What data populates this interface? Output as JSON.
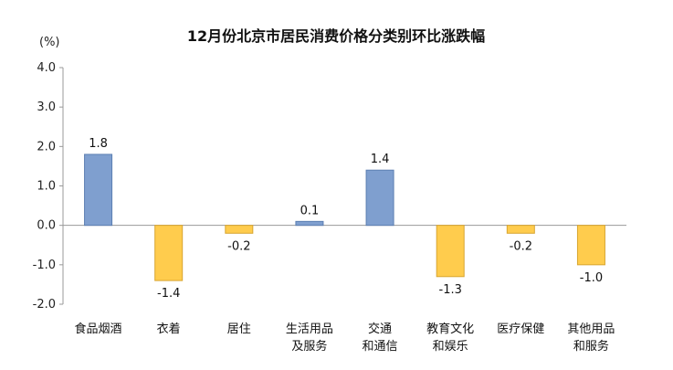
{
  "chart_data": {
    "type": "bar",
    "title": "12月份北京市居民消费价格分类别环比涨跌幅",
    "ylabel": "(%)",
    "ylim": [
      -2.0,
      4.0
    ],
    "yticks": [
      "4.0",
      "3.0",
      "2.0",
      "1.0",
      "0.0",
      "-1.0",
      "-2.0"
    ],
    "grid": false,
    "colors": {
      "positive": "#7f9fcf",
      "positive_edge": "#5c7fb2",
      "negative": "#ffcc4d",
      "negative_edge": "#d8a530"
    },
    "categories": [
      [
        "食品烟酒"
      ],
      [
        "衣着"
      ],
      [
        "居住"
      ],
      [
        "生活用品",
        "及服务"
      ],
      [
        "交通",
        "和通信"
      ],
      [
        "教育文化",
        "和娱乐"
      ],
      [
        "医疗保健"
      ],
      [
        "其他用品",
        "和服务"
      ]
    ],
    "values": [
      1.8,
      -1.4,
      -0.2,
      0.1,
      1.4,
      -1.3,
      -0.2,
      -1.0
    ],
    "value_labels": [
      "1.8",
      "-1.4",
      "-0.2",
      "0.1",
      "1.4",
      "-1.3",
      "-0.2",
      "-1.0"
    ]
  }
}
